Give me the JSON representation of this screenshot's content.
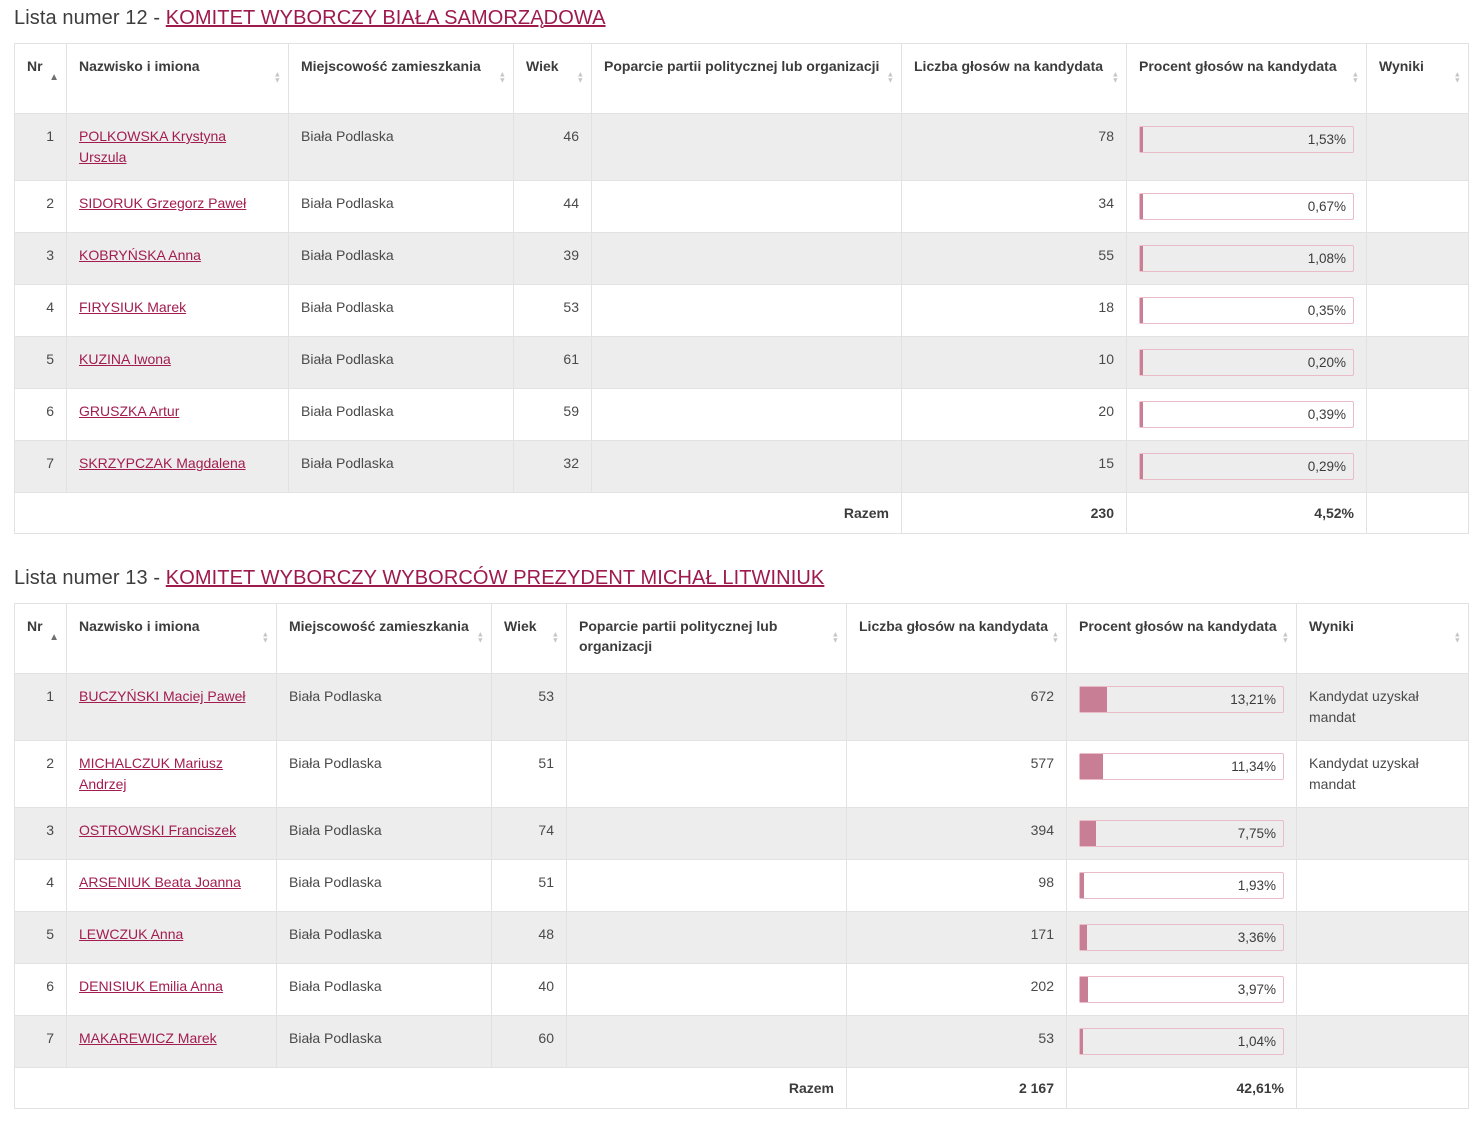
{
  "tables": [
    {
      "title_prefix": "Lista numer 12 - ",
      "title_link": "KOMITET WYBORCZY BIAŁA SAMORZĄDOWA",
      "columns": [
        {
          "key": "nr",
          "label": "Nr",
          "sort": "asc"
        },
        {
          "key": "name",
          "label": "Nazwisko i imiona",
          "sort": "none"
        },
        {
          "key": "city",
          "label": "Miejscowość zamieszkania",
          "sort": "none"
        },
        {
          "key": "age",
          "label": "Wiek",
          "sort": "none"
        },
        {
          "key": "support",
          "label": "Poparcie partii politycznej lub organizacji",
          "sort": "none"
        },
        {
          "key": "votes",
          "label": "Liczba głosów na kandydata",
          "sort": "none"
        },
        {
          "key": "percent",
          "label": "Procent głosów na kandydata",
          "sort": "none"
        },
        {
          "key": "results",
          "label": "Wyniki",
          "sort": "none"
        }
      ],
      "rows": [
        {
          "nr": "1",
          "name": "POLKOWSKA Krystyna Urszula",
          "city": "Biała Podlaska",
          "age": "46",
          "support": "",
          "votes": "78",
          "percent": "1,53%",
          "result": ""
        },
        {
          "nr": "2",
          "name": "SIDORUK Grzegorz Paweł",
          "city": "Biała Podlaska",
          "age": "44",
          "support": "",
          "votes": "34",
          "percent": "0,67%",
          "result": ""
        },
        {
          "nr": "3",
          "name": "KOBRYŃSKA Anna",
          "city": "Biała Podlaska",
          "age": "39",
          "support": "",
          "votes": "55",
          "percent": "1,08%",
          "result": ""
        },
        {
          "nr": "4",
          "name": "FIRYSIUK Marek",
          "city": "Biała Podlaska",
          "age": "53",
          "support": "",
          "votes": "18",
          "percent": "0,35%",
          "result": ""
        },
        {
          "nr": "5",
          "name": "KUZINA Iwona",
          "city": "Biała Podlaska",
          "age": "61",
          "support": "",
          "votes": "10",
          "percent": "0,20%",
          "result": ""
        },
        {
          "nr": "6",
          "name": "GRUSZKA Artur",
          "city": "Biała Podlaska",
          "age": "59",
          "support": "",
          "votes": "20",
          "percent": "0,39%",
          "result": ""
        },
        {
          "nr": "7",
          "name": "SKRZYPCZAK Magdalena",
          "city": "Biała Podlaska",
          "age": "32",
          "support": "",
          "votes": "15",
          "percent": "0,29%",
          "result": ""
        }
      ],
      "footer": {
        "label": "Razem",
        "votes": "230",
        "percent": "4,52%"
      }
    },
    {
      "title_prefix": "Lista numer 13 - ",
      "title_link": "KOMITET WYBORCZY WYBORCÓW PREZYDENT MICHAŁ LITWINIUK",
      "columns": [
        {
          "key": "nr",
          "label": "Nr",
          "sort": "asc"
        },
        {
          "key": "name",
          "label": "Nazwisko i imiona",
          "sort": "none"
        },
        {
          "key": "city",
          "label": "Miejscowość zamieszkania",
          "sort": "none"
        },
        {
          "key": "age",
          "label": "Wiek",
          "sort": "none"
        },
        {
          "key": "support",
          "label": "Poparcie partii politycznej lub organizacji",
          "sort": "none"
        },
        {
          "key": "votes",
          "label": "Liczba głosów na kandydata",
          "sort": "none"
        },
        {
          "key": "percent",
          "label": "Procent głosów na kandydata",
          "sort": "none"
        },
        {
          "key": "results",
          "label": "Wyniki",
          "sort": "none"
        }
      ],
      "rows": [
        {
          "nr": "1",
          "name": "BUCZYŃSKI Maciej Paweł",
          "city": "Biała Podlaska",
          "age": "53",
          "support": "",
          "votes": "672",
          "percent": "13,21%",
          "result": "Kandydat uzyskał mandat"
        },
        {
          "nr": "2",
          "name": "MICHALCZUK Mariusz Andrzej",
          "city": "Biała Podlaska",
          "age": "51",
          "support": "",
          "votes": "577",
          "percent": "11,34%",
          "result": "Kandydat uzyskał mandat"
        },
        {
          "nr": "3",
          "name": "OSTROWSKI Franciszek",
          "city": "Biała Podlaska",
          "age": "74",
          "support": "",
          "votes": "394",
          "percent": "7,75%",
          "result": ""
        },
        {
          "nr": "4",
          "name": "ARSENIUK Beata Joanna",
          "city": "Biała Podlaska",
          "age": "51",
          "support": "",
          "votes": "98",
          "percent": "1,93%",
          "result": ""
        },
        {
          "nr": "5",
          "name": "LEWCZUK Anna",
          "city": "Biała Podlaska",
          "age": "48",
          "support": "",
          "votes": "171",
          "percent": "3,36%",
          "result": ""
        },
        {
          "nr": "6",
          "name": "DENISIUK Emilia Anna",
          "city": "Biała Podlaska",
          "age": "40",
          "support": "",
          "votes": "202",
          "percent": "3,97%",
          "result": ""
        },
        {
          "nr": "7",
          "name": "MAKAREWICZ Marek",
          "city": "Biała Podlaska",
          "age": "60",
          "support": "",
          "votes": "53",
          "percent": "1,04%",
          "result": ""
        }
      ],
      "footer": {
        "label": "Razem",
        "votes": "2 167",
        "percent": "42,61%"
      }
    }
  ],
  "colors": {
    "committee_link": "#9e1a4e",
    "candidate_link": "#a21c4f",
    "bar_fill": "#c87e95",
    "bar_border": "#e9bcc8",
    "row_stripe": "#ededed"
  },
  "icons": {
    "sort_ascending": "sort-ascending-icon",
    "sort_toggle": "sort-toggle-icon"
  }
}
